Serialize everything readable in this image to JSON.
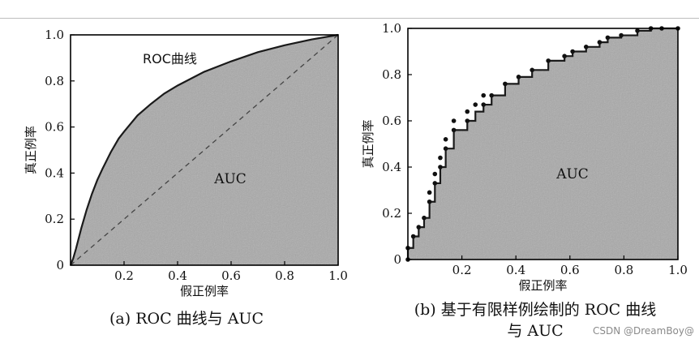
{
  "watermark": "CSDN @DreamBoy@",
  "colors": {
    "fill": "#a9a9a9",
    "frame": "#000000",
    "curve": "#1a1a1a",
    "dashed": "#444444"
  },
  "chart_data": [
    {
      "type": "area",
      "caption": "(a) ROC 曲线与 AUC",
      "xlabel": "假正例率",
      "ylabel": "真正例率",
      "xlim": [
        0,
        1.0
      ],
      "ylim": [
        0,
        1.0
      ],
      "xticks": [
        "0.2",
        "0.4",
        "0.6",
        "0.8",
        "1.0"
      ],
      "yticks": [
        "0",
        "0.2",
        "0.4",
        "0.6",
        "0.8",
        "1.0"
      ],
      "curve_label": "ROC曲线",
      "area_label": "AUC",
      "series": [
        {
          "name": "ROC曲线",
          "x": [
            0,
            0.01,
            0.02,
            0.04,
            0.06,
            0.08,
            0.1,
            0.12,
            0.15,
            0.18,
            0.2,
            0.25,
            0.3,
            0.35,
            0.4,
            0.5,
            0.6,
            0.7,
            0.8,
            0.9,
            1.0
          ],
          "y": [
            0,
            0.03,
            0.07,
            0.16,
            0.24,
            0.31,
            0.37,
            0.42,
            0.49,
            0.55,
            0.58,
            0.65,
            0.7,
            0.745,
            0.78,
            0.84,
            0.885,
            0.925,
            0.955,
            0.98,
            1.0
          ]
        }
      ],
      "diagonal": {
        "x": [
          0,
          1.0
        ],
        "y": [
          0,
          1.0
        ],
        "style": "dashed"
      }
    },
    {
      "type": "area",
      "caption": "(b) 基于有限样例绘制的 ROC 曲线",
      "caption_line2": "与 AUC",
      "xlabel": "假正例率",
      "ylabel": "真正例率",
      "xlim": [
        0,
        1.0
      ],
      "ylim": [
        0,
        1.0
      ],
      "xticks": [
        "0.2",
        "0.4",
        "0.6",
        "0.8",
        "1.0"
      ],
      "yticks": [
        "0",
        "0.2",
        "0.4",
        "0.6",
        "0.8",
        "1.0"
      ],
      "area_label": "AUC",
      "series": [
        {
          "name": "ROC",
          "x": [
            0,
            0,
            0.02,
            0.02,
            0.04,
            0.04,
            0.06,
            0.06,
            0.08,
            0.08,
            0.1,
            0.1,
            0.12,
            0.12,
            0.14,
            0.14,
            0.17,
            0.17,
            0.22,
            0.22,
            0.25,
            0.25,
            0.28,
            0.28,
            0.31,
            0.31,
            0.36,
            0.36,
            0.41,
            0.41,
            0.46,
            0.46,
            0.52,
            0.52,
            0.58,
            0.58,
            0.61,
            0.61,
            0.66,
            0.66,
            0.71,
            0.71,
            0.74,
            0.74,
            0.79,
            0.79,
            0.85,
            0.85,
            0.9,
            0.9,
            0.94,
            1.0
          ],
          "y": [
            0,
            0.05,
            0.05,
            0.1,
            0.1,
            0.14,
            0.14,
            0.18,
            0.18,
            0.25,
            0.25,
            0.33,
            0.33,
            0.4,
            0.4,
            0.48,
            0.48,
            0.56,
            0.56,
            0.6,
            0.6,
            0.64,
            0.64,
            0.67,
            0.67,
            0.71,
            0.71,
            0.76,
            0.76,
            0.79,
            0.79,
            0.82,
            0.82,
            0.86,
            0.86,
            0.88,
            0.88,
            0.9,
            0.9,
            0.92,
            0.92,
            0.94,
            0.94,
            0.96,
            0.96,
            0.97,
            0.97,
            0.99,
            0.99,
            1.0,
            1.0,
            1.0
          ]
        }
      ],
      "points": [
        [
          0,
          0.0
        ],
        [
          0,
          0.05
        ],
        [
          0.02,
          0.1
        ],
        [
          0.04,
          0.14
        ],
        [
          0.06,
          0.18
        ],
        [
          0.08,
          0.25
        ],
        [
          0.08,
          0.29
        ],
        [
          0.1,
          0.33
        ],
        [
          0.1,
          0.37
        ],
        [
          0.12,
          0.4
        ],
        [
          0.12,
          0.44
        ],
        [
          0.14,
          0.48
        ],
        [
          0.14,
          0.52
        ],
        [
          0.17,
          0.56
        ],
        [
          0.17,
          0.6
        ],
        [
          0.22,
          0.6
        ],
        [
          0.22,
          0.64
        ],
        [
          0.25,
          0.67
        ],
        [
          0.28,
          0.67
        ],
        [
          0.28,
          0.71
        ],
        [
          0.31,
          0.71
        ],
        [
          0.36,
          0.76
        ],
        [
          0.41,
          0.79
        ],
        [
          0.46,
          0.82
        ],
        [
          0.52,
          0.86
        ],
        [
          0.58,
          0.88
        ],
        [
          0.61,
          0.9
        ],
        [
          0.66,
          0.92
        ],
        [
          0.71,
          0.94
        ],
        [
          0.74,
          0.96
        ],
        [
          0.79,
          0.97
        ],
        [
          0.85,
          0.99
        ],
        [
          0.9,
          1.0
        ],
        [
          0.94,
          1.0
        ],
        [
          1.0,
          1.0
        ]
      ]
    }
  ]
}
